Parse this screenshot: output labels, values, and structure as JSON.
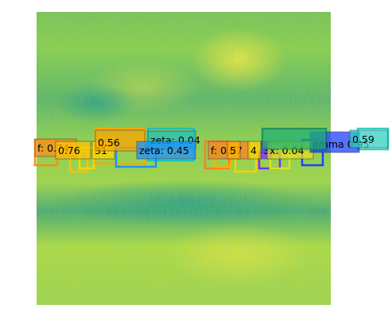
{
  "image": {
    "description_colors": {
      "base": "#8bc34a",
      "highlight": "#e0e04a",
      "shadow": "#2aa07a"
    }
  },
  "detections": [
    {
      "label": "f: 0.74",
      "color": "#ff8c1a"
    },
    {
      "label": "0.76",
      "color": "#ffc107"
    },
    {
      "label": "31",
      "color": "#ffd700"
    },
    {
      "label": "0.56",
      "color": "#ffa500"
    },
    {
      "label": "zeta: 0.04",
      "color": "#20c0c0"
    },
    {
      "label": "zeta: 0.45",
      "color": "#1e90ff"
    },
    {
      "label": "f: 0.07",
      "color": "#ff7f24"
    },
    {
      "label": "5",
      "color": "#ffb000"
    },
    {
      "label": "4",
      "color": "#ffd000"
    },
    {
      "label": "3",
      "color": "#7b2cff"
    },
    {
      "label": "x: 0.04",
      "color": "#e0e020"
    },
    {
      "label": "amma 0.95",
      "color": "#2040ff"
    },
    {
      "label": "0.59",
      "color": "#30d0c0"
    },
    {
      "label": "",
      "color": "#20b070"
    }
  ]
}
